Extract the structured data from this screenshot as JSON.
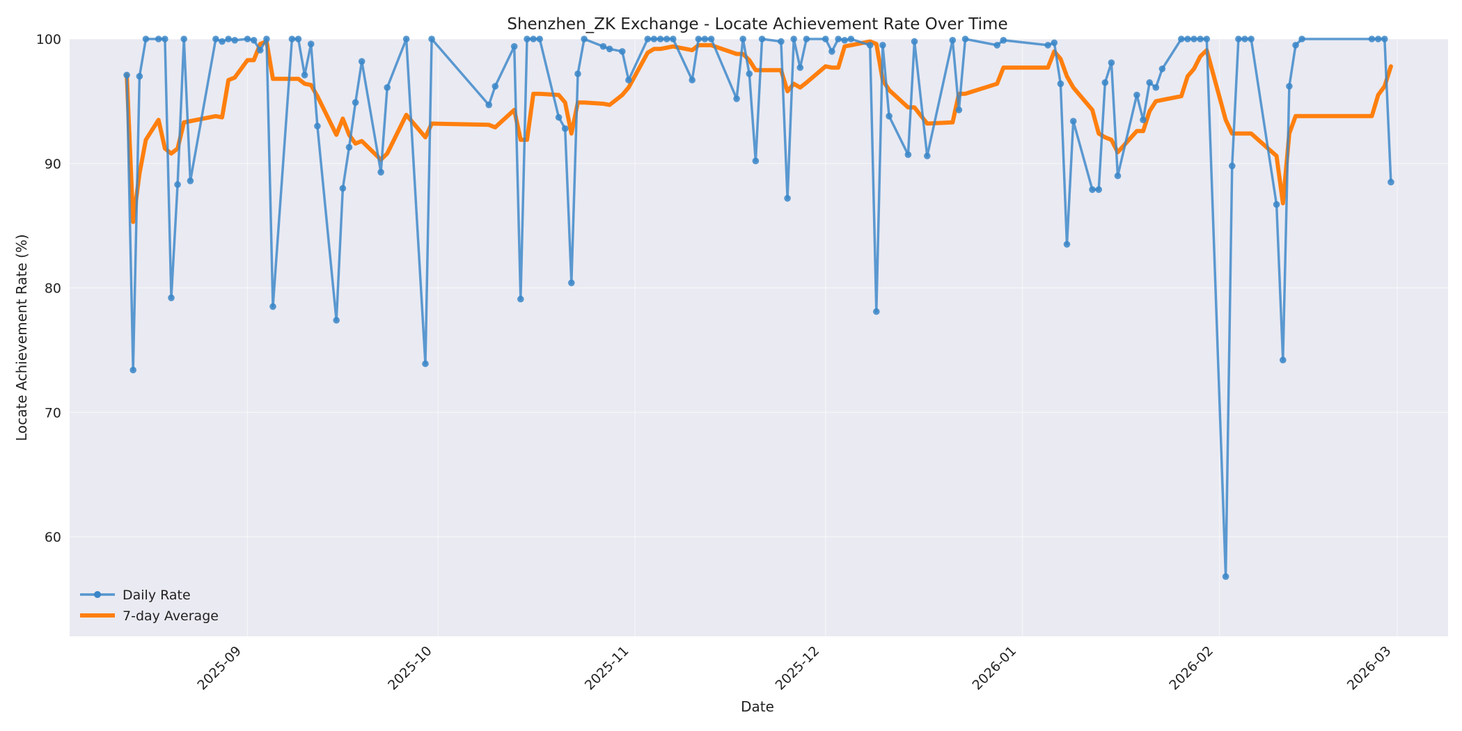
{
  "chart_data": {
    "type": "line",
    "title": "Shenzhen_ZK Exchange - Locate Achievement Rate Over Time",
    "xlabel": "Date",
    "ylabel": "Locate Achievement Rate (%)",
    "xlim": [
      "2025-08-04",
      "2026-03-09"
    ],
    "ylim": [
      52,
      100
    ],
    "yticks": [
      60,
      70,
      80,
      90,
      100
    ],
    "xticks": [
      {
        "date": "2025-09-01",
        "label": "2025-09"
      },
      {
        "date": "2025-10-01",
        "label": "2025-10"
      },
      {
        "date": "2025-11-01",
        "label": "2025-11"
      },
      {
        "date": "2025-12-01",
        "label": "2025-12"
      },
      {
        "date": "2026-01-01",
        "label": "2026-01"
      },
      {
        "date": "2026-02-01",
        "label": "2026-02"
      },
      {
        "date": "2026-03-01",
        "label": "2026-03"
      }
    ],
    "grid": true,
    "legend_position": "lower-left",
    "colors": {
      "daily": "#3a86c8",
      "average": "#ff7f0e",
      "plot_background": "#eaeaf2"
    },
    "series": [
      {
        "name": "Daily Rate",
        "marker": "circle",
        "points": [
          [
            "2025-08-13",
            97.1
          ],
          [
            "2025-08-14",
            73.4
          ],
          [
            "2025-08-15",
            97.0
          ],
          [
            "2025-08-16",
            100.0
          ],
          [
            "2025-08-18",
            100.0
          ],
          [
            "2025-08-19",
            100.0
          ],
          [
            "2025-08-20",
            79.2
          ],
          [
            "2025-08-21",
            88.3
          ],
          [
            "2025-08-22",
            100.0
          ],
          [
            "2025-08-23",
            88.6
          ],
          [
            "2025-08-27",
            100.0
          ],
          [
            "2025-08-28",
            99.8
          ],
          [
            "2025-08-29",
            100.0
          ],
          [
            "2025-08-30",
            99.9
          ],
          [
            "2025-09-01",
            100.0
          ],
          [
            "2025-09-02",
            99.9
          ],
          [
            "2025-09-03",
            99.1
          ],
          [
            "2025-09-04",
            100.0
          ],
          [
            "2025-09-05",
            78.5
          ],
          [
            "2025-09-08",
            100.0
          ],
          [
            "2025-09-09",
            100.0
          ],
          [
            "2025-09-10",
            97.1
          ],
          [
            "2025-09-11",
            99.6
          ],
          [
            "2025-09-12",
            93.0
          ],
          [
            "2025-09-15",
            77.4
          ],
          [
            "2025-09-16",
            88.0
          ],
          [
            "2025-09-17",
            91.3
          ],
          [
            "2025-09-18",
            94.9
          ],
          [
            "2025-09-19",
            98.2
          ],
          [
            "2025-09-22",
            89.3
          ],
          [
            "2025-09-23",
            96.1
          ],
          [
            "2025-09-26",
            100.0
          ],
          [
            "2025-09-29",
            73.9
          ],
          [
            "2025-09-30",
            100.0
          ],
          [
            "2025-10-09",
            94.7
          ],
          [
            "2025-10-10",
            96.2
          ],
          [
            "2025-10-13",
            99.4
          ],
          [
            "2025-10-14",
            79.1
          ],
          [
            "2025-10-15",
            100.0
          ],
          [
            "2025-10-16",
            100.0
          ],
          [
            "2025-10-17",
            100.0
          ],
          [
            "2025-10-20",
            93.7
          ],
          [
            "2025-10-21",
            92.8
          ],
          [
            "2025-10-22",
            80.4
          ],
          [
            "2025-10-23",
            97.2
          ],
          [
            "2025-10-24",
            100.0
          ],
          [
            "2025-10-27",
            99.4
          ],
          [
            "2025-10-28",
            99.2
          ],
          [
            "2025-10-30",
            99.0
          ],
          [
            "2025-10-31",
            96.7
          ],
          [
            "2025-11-03",
            100.0
          ],
          [
            "2025-11-04",
            100.0
          ],
          [
            "2025-11-05",
            100.0
          ],
          [
            "2025-11-06",
            100.0
          ],
          [
            "2025-11-07",
            100.0
          ],
          [
            "2025-11-10",
            96.7
          ],
          [
            "2025-11-11",
            100.0
          ],
          [
            "2025-11-12",
            100.0
          ],
          [
            "2025-11-13",
            100.0
          ],
          [
            "2025-11-17",
            95.2
          ],
          [
            "2025-11-18",
            100.0
          ],
          [
            "2025-11-19",
            97.2
          ],
          [
            "2025-11-20",
            90.2
          ],
          [
            "2025-11-21",
            100.0
          ],
          [
            "2025-11-24",
            99.8
          ],
          [
            "2025-11-25",
            87.2
          ],
          [
            "2025-11-26",
            100.0
          ],
          [
            "2025-11-27",
            97.7
          ],
          [
            "2025-11-28",
            100.0
          ],
          [
            "2025-12-01",
            100.0
          ],
          [
            "2025-12-02",
            99.0
          ],
          [
            "2025-12-03",
            100.0
          ],
          [
            "2025-12-04",
            99.9
          ],
          [
            "2025-12-05",
            100.0
          ],
          [
            "2025-12-08",
            99.5
          ],
          [
            "2025-12-09",
            78.1
          ],
          [
            "2025-12-10",
            99.5
          ],
          [
            "2025-12-11",
            93.8
          ],
          [
            "2025-12-14",
            90.7
          ],
          [
            "2025-12-15",
            99.8
          ],
          [
            "2025-12-17",
            90.6
          ],
          [
            "2025-12-21",
            99.9
          ],
          [
            "2025-12-22",
            94.3
          ],
          [
            "2025-12-23",
            100.0
          ],
          [
            "2025-12-28",
            99.5
          ],
          [
            "2025-12-29",
            99.9
          ],
          [
            "2026-01-05",
            99.5
          ],
          [
            "2026-01-06",
            99.7
          ],
          [
            "2026-01-07",
            96.4
          ],
          [
            "2026-01-08",
            83.5
          ],
          [
            "2026-01-09",
            93.4
          ],
          [
            "2026-01-12",
            87.9
          ],
          [
            "2026-01-13",
            87.9
          ],
          [
            "2026-01-14",
            96.5
          ],
          [
            "2026-01-15",
            98.1
          ],
          [
            "2026-01-16",
            89.0
          ],
          [
            "2026-01-19",
            95.5
          ],
          [
            "2026-01-20",
            93.5
          ],
          [
            "2026-01-21",
            96.5
          ],
          [
            "2026-01-22",
            96.1
          ],
          [
            "2026-01-23",
            97.6
          ],
          [
            "2026-01-26",
            100.0
          ],
          [
            "2026-01-27",
            100.0
          ],
          [
            "2026-01-28",
            100.0
          ],
          [
            "2026-01-29",
            100.0
          ],
          [
            "2026-01-30",
            100.0
          ],
          [
            "2026-02-02",
            56.8
          ],
          [
            "2026-02-03",
            89.8
          ],
          [
            "2026-02-04",
            100.0
          ],
          [
            "2026-02-05",
            100.0
          ],
          [
            "2026-02-06",
            100.0
          ],
          [
            "2026-02-10",
            86.7
          ],
          [
            "2026-02-11",
            74.2
          ],
          [
            "2026-02-12",
            96.2
          ],
          [
            "2026-02-13",
            99.5
          ],
          [
            "2026-02-14",
            100.0
          ],
          [
            "2026-02-25",
            100.0
          ],
          [
            "2026-02-26",
            100.0
          ],
          [
            "2026-02-27",
            100.0
          ],
          [
            "2026-02-28",
            88.5
          ]
        ]
      },
      {
        "name": "7-day Average",
        "marker": "none",
        "points": [
          [
            "2025-08-13",
            97.1
          ],
          [
            "2025-08-14",
            85.3
          ],
          [
            "2025-08-15",
            89.2
          ],
          [
            "2025-08-16",
            91.9
          ],
          [
            "2025-08-18",
            93.5
          ],
          [
            "2025-08-19",
            91.2
          ],
          [
            "2025-08-20",
            90.8
          ],
          [
            "2025-08-21",
            91.2
          ],
          [
            "2025-08-22",
            93.3
          ],
          [
            "2025-08-23",
            93.4
          ],
          [
            "2025-08-27",
            93.8
          ],
          [
            "2025-08-28",
            93.7
          ],
          [
            "2025-08-29",
            96.7
          ],
          [
            "2025-08-30",
            96.9
          ],
          [
            "2025-09-01",
            98.3
          ],
          [
            "2025-09-02",
            98.3
          ],
          [
            "2025-09-03",
            99.6
          ],
          [
            "2025-09-04",
            99.8
          ],
          [
            "2025-09-05",
            96.8
          ],
          [
            "2025-09-08",
            96.8
          ],
          [
            "2025-09-09",
            96.8
          ],
          [
            "2025-09-10",
            96.4
          ],
          [
            "2025-09-11",
            96.3
          ],
          [
            "2025-09-12",
            95.4
          ],
          [
            "2025-09-15",
            92.3
          ],
          [
            "2025-09-16",
            93.6
          ],
          [
            "2025-09-17",
            92.3
          ],
          [
            "2025-09-18",
            91.6
          ],
          [
            "2025-09-19",
            91.8
          ],
          [
            "2025-09-22",
            90.3
          ],
          [
            "2025-09-23",
            90.8
          ],
          [
            "2025-09-26",
            93.9
          ],
          [
            "2025-09-29",
            92.1
          ],
          [
            "2025-09-30",
            93.2
          ],
          [
            "2025-10-09",
            93.1
          ],
          [
            "2025-10-10",
            92.9
          ],
          [
            "2025-10-13",
            94.3
          ],
          [
            "2025-10-14",
            91.9
          ],
          [
            "2025-10-15",
            91.9
          ],
          [
            "2025-10-16",
            95.6
          ],
          [
            "2025-10-17",
            95.6
          ],
          [
            "2025-10-20",
            95.5
          ],
          [
            "2025-10-21",
            94.9
          ],
          [
            "2025-10-22",
            92.4
          ],
          [
            "2025-10-23",
            94.9
          ],
          [
            "2025-10-24",
            94.9
          ],
          [
            "2025-10-27",
            94.8
          ],
          [
            "2025-10-28",
            94.7
          ],
          [
            "2025-10-30",
            95.5
          ],
          [
            "2025-10-31",
            96.1
          ],
          [
            "2025-11-03",
            98.9
          ],
          [
            "2025-11-04",
            99.2
          ],
          [
            "2025-11-05",
            99.2
          ],
          [
            "2025-11-06",
            99.3
          ],
          [
            "2025-11-07",
            99.4
          ],
          [
            "2025-11-10",
            99.1
          ],
          [
            "2025-11-11",
            99.5
          ],
          [
            "2025-11-12",
            99.5
          ],
          [
            "2025-11-13",
            99.5
          ],
          [
            "2025-11-17",
            98.8
          ],
          [
            "2025-11-18",
            98.8
          ],
          [
            "2025-11-19",
            98.3
          ],
          [
            "2025-11-20",
            97.5
          ],
          [
            "2025-11-21",
            97.5
          ],
          [
            "2025-11-24",
            97.5
          ],
          [
            "2025-11-25",
            95.8
          ],
          [
            "2025-11-26",
            96.4
          ],
          [
            "2025-11-27",
            96.1
          ],
          [
            "2025-11-28",
            96.5
          ],
          [
            "2025-12-01",
            97.8
          ],
          [
            "2025-12-02",
            97.7
          ],
          [
            "2025-12-03",
            97.7
          ],
          [
            "2025-12-04",
            99.4
          ],
          [
            "2025-12-05",
            99.5
          ],
          [
            "2025-12-08",
            99.8
          ],
          [
            "2025-12-09",
            99.6
          ],
          [
            "2025-12-10",
            96.7
          ],
          [
            "2025-12-11",
            95.9
          ],
          [
            "2025-12-14",
            94.5
          ],
          [
            "2025-12-15",
            94.5
          ],
          [
            "2025-12-17",
            93.2
          ],
          [
            "2025-12-21",
            93.3
          ],
          [
            "2025-12-22",
            95.6
          ],
          [
            "2025-12-23",
            95.6
          ],
          [
            "2025-12-28",
            96.4
          ],
          [
            "2025-12-29",
            97.7
          ],
          [
            "2026-01-05",
            97.7
          ],
          [
            "2026-01-06",
            99.0
          ],
          [
            "2026-01-07",
            98.4
          ],
          [
            "2026-01-08",
            97.0
          ],
          [
            "2026-01-09",
            96.1
          ],
          [
            "2026-01-12",
            94.3
          ],
          [
            "2026-01-13",
            92.4
          ],
          [
            "2026-01-14",
            92.1
          ],
          [
            "2026-01-15",
            91.9
          ],
          [
            "2026-01-16",
            90.9
          ],
          [
            "2026-01-19",
            92.6
          ],
          [
            "2026-01-20",
            92.6
          ],
          [
            "2026-01-21",
            94.2
          ],
          [
            "2026-01-22",
            95.0
          ],
          [
            "2026-01-23",
            95.1
          ],
          [
            "2026-01-26",
            95.4
          ],
          [
            "2026-01-27",
            97.0
          ],
          [
            "2026-01-28",
            97.6
          ],
          [
            "2026-01-29",
            98.6
          ],
          [
            "2026-01-30",
            99.1
          ],
          [
            "2026-02-02",
            93.5
          ],
          [
            "2026-02-03",
            92.4
          ],
          [
            "2026-02-04",
            92.4
          ],
          [
            "2026-02-05",
            92.4
          ],
          [
            "2026-02-06",
            92.4
          ],
          [
            "2026-02-10",
            90.6
          ],
          [
            "2026-02-11",
            86.8
          ],
          [
            "2026-02-12",
            92.4
          ],
          [
            "2026-02-13",
            93.8
          ],
          [
            "2026-02-14",
            93.8
          ],
          [
            "2026-02-25",
            93.8
          ],
          [
            "2026-02-26",
            95.5
          ],
          [
            "2026-02-27",
            96.2
          ],
          [
            "2026-02-28",
            97.8
          ]
        ]
      }
    ]
  }
}
